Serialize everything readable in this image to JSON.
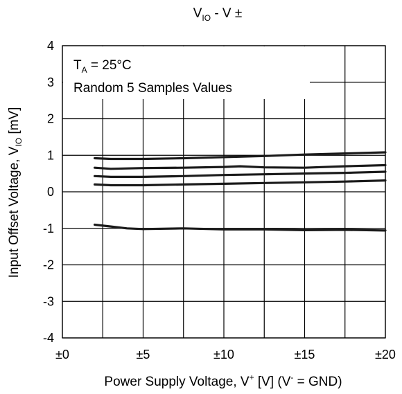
{
  "chart_data": {
    "type": "line",
    "title": {
      "main": "V",
      "main_sub": "IO",
      "suffix": " - V ±"
    },
    "xlabel": {
      "main": "Power Supply Voltage, V",
      "sup": "+",
      "mid": " [V] (V",
      "sup2": "-",
      "end": " = GND)"
    },
    "ylabel": {
      "main": "Input Offset Voltage, V",
      "sub": "IO",
      "end": " [mV]"
    },
    "xlim": [
      0,
      20
    ],
    "ylim": [
      -4,
      4
    ],
    "x_ticks": [
      0,
      2.5,
      5,
      7.5,
      10,
      12.5,
      15,
      17.5,
      20
    ],
    "x_tick_labels": [
      {
        "value": 0,
        "label": "±0"
      },
      {
        "value": 5,
        "label": "±5"
      },
      {
        "value": 10,
        "label": "±10"
      },
      {
        "value": 15,
        "label": "±15"
      },
      {
        "value": 20,
        "label": "±20"
      }
    ],
    "y_ticks": [
      -4,
      -3,
      -2,
      -1,
      0,
      1,
      2,
      3,
      4
    ],
    "y_tick_labels": [
      "-4",
      "-3",
      "-2",
      "-1",
      "0",
      "1",
      "2",
      "3",
      "4"
    ],
    "grid": true,
    "annotations": {
      "temp_main": "T",
      "temp_sub": "A",
      "temp_rest": " = 25°C",
      "samples": "Random 5 Samples Values"
    },
    "series": [
      {
        "x": [
          2,
          3,
          5,
          7.5,
          10,
          12.5,
          15,
          17.5,
          20
        ],
        "values": [
          0.92,
          0.9,
          0.9,
          0.92,
          0.95,
          0.98,
          1.02,
          1.05,
          1.08
        ]
      },
      {
        "x": [
          2,
          3,
          5,
          7.5,
          10,
          11,
          12.5,
          15,
          17.5,
          20
        ],
        "values": [
          0.66,
          0.63,
          0.65,
          0.66,
          0.68,
          0.7,
          0.67,
          0.66,
          0.7,
          0.73
        ]
      },
      {
        "x": [
          2,
          3,
          5,
          7.5,
          10,
          12.5,
          15,
          17.5,
          20
        ],
        "values": [
          0.43,
          0.41,
          0.41,
          0.43,
          0.46,
          0.48,
          0.5,
          0.52,
          0.55
        ]
      },
      {
        "x": [
          2,
          3,
          5,
          7.5,
          10,
          12.5,
          15,
          17.5,
          20
        ],
        "values": [
          0.2,
          0.18,
          0.18,
          0.2,
          0.22,
          0.24,
          0.26,
          0.28,
          0.31
        ]
      },
      {
        "x": [
          2,
          3,
          4,
          5,
          7.5,
          10,
          12.5,
          15,
          17.5,
          20
        ],
        "values": [
          -0.9,
          -0.95,
          -1.0,
          -1.02,
          -1.0,
          -1.03,
          -1.03,
          -1.05,
          -1.04,
          -1.06
        ]
      }
    ],
    "series_color": "#1a1a1a"
  }
}
